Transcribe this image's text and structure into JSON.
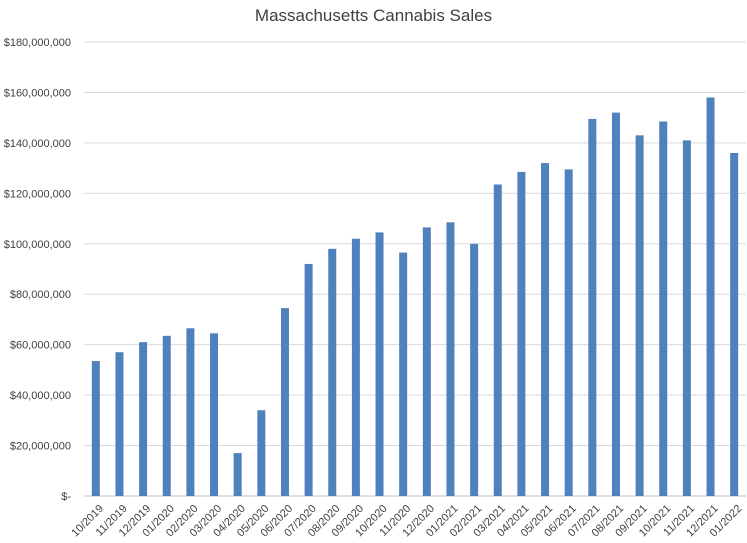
{
  "chart_data": {
    "type": "bar",
    "title": "Massachusetts Cannabis Sales",
    "xlabel": "",
    "ylabel": "",
    "ylim": [
      0,
      180000000
    ],
    "yticks": [
      0,
      20000000,
      40000000,
      60000000,
      80000000,
      100000000,
      120000000,
      140000000,
      160000000,
      180000000
    ],
    "ytick_labels": [
      "$-",
      "$20,000,000",
      "$40,000,000",
      "$60,000,000",
      "$80,000,000",
      "$100,000,000",
      "$120,000,000",
      "$140,000,000",
      "$160,000,000",
      "$180,000,000"
    ],
    "categories": [
      "10/2019",
      "11/2019",
      "12/2019",
      "01/2020",
      "02/2020",
      "03/2020",
      "04/2020",
      "05/2020",
      "06/2020",
      "07/2020",
      "08/2020",
      "09/2020",
      "10/2020",
      "11/2020",
      "12/2020",
      "01/2021",
      "02/2021",
      "03/2021",
      "04/2021",
      "05/2021",
      "06/2021",
      "07/2021",
      "08/2021",
      "09/2021",
      "10/2021",
      "11/2021",
      "12/2021",
      "01/2022"
    ],
    "values": [
      53500000,
      57000000,
      61000000,
      63500000,
      66500000,
      64500000,
      17000000,
      34000000,
      74500000,
      92000000,
      98000000,
      102000000,
      104500000,
      96500000,
      106500000,
      108500000,
      100000000,
      123500000,
      128500000,
      132000000,
      129500000,
      149500000,
      152000000,
      143000000,
      148500000,
      141000000,
      158000000,
      136000000
    ],
    "grid": true,
    "legend": "none",
    "bar_color": "#4f81bd",
    "grid_color": "#d9d9d9",
    "text_color": "#404040"
  }
}
